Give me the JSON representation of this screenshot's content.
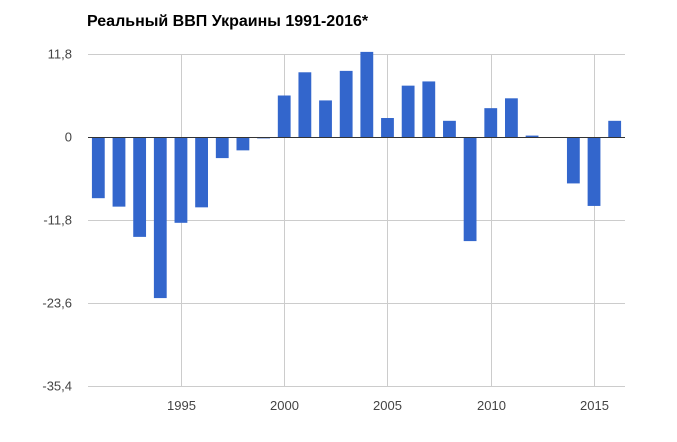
{
  "chart_data": {
    "type": "bar",
    "title": "Реальный ВВП Украины 1991-2016*",
    "xlabel": "",
    "ylabel": "",
    "x": [
      1991,
      1992,
      1993,
      1994,
      1995,
      1996,
      1997,
      1998,
      1999,
      2000,
      2001,
      2002,
      2003,
      2004,
      2005,
      2006,
      2007,
      2008,
      2009,
      2010,
      2011,
      2012,
      2013,
      2014,
      2015,
      2016
    ],
    "values": [
      -8.7,
      -9.9,
      -14.2,
      -22.9,
      -12.2,
      -10.0,
      -3.0,
      -1.9,
      -0.2,
      5.9,
      9.2,
      5.2,
      9.4,
      12.1,
      2.7,
      7.3,
      7.9,
      2.3,
      -14.8,
      4.1,
      5.5,
      0.2,
      0.0,
      -6.6,
      -9.8,
      2.3
    ],
    "ylim": [
      -35.4,
      11.8
    ],
    "yticks": [
      11.8,
      0,
      -11.8,
      -23.6,
      -35.4
    ],
    "ytick_labels": [
      "11,8",
      "0",
      "-11,8",
      "-23,6",
      "-35,4"
    ],
    "xticks": [
      1995,
      2000,
      2005,
      2010,
      2015
    ],
    "xtick_labels": [
      "1995",
      "2000",
      "2005",
      "2010",
      "2015"
    ],
    "xlim": [
      1990.5,
      2016.5
    ],
    "grid": true,
    "legend": "none",
    "colors": {
      "bar": "#3366cc",
      "grid": "#cccccc",
      "zero_line": "#333333",
      "tick_text": "#444444"
    }
  }
}
